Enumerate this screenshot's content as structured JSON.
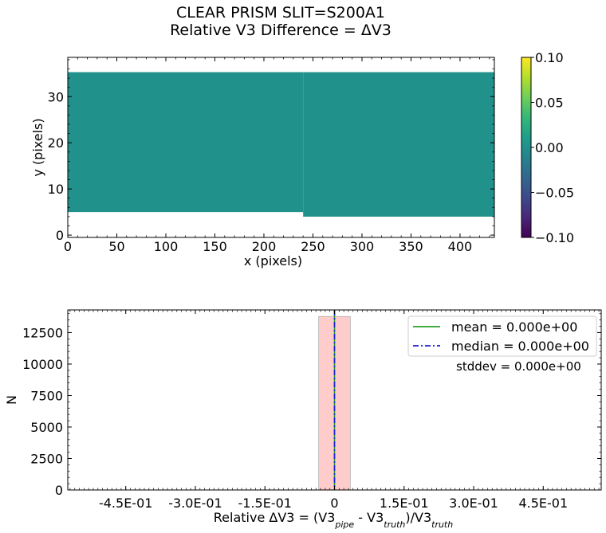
{
  "title_line1": "CLEAR   PRISM   SLIT=S200A1",
  "title_line2": "Relative V3 Difference = ΔV3",
  "chart_data": [
    {
      "type": "heatmap",
      "xlabel": "x (pixels)",
      "ylabel": "y (pixels)",
      "xlim": [
        0,
        435
      ],
      "ylim": [
        -0.5,
        38.5
      ],
      "xticks": [
        0,
        50,
        100,
        150,
        200,
        250,
        300,
        350,
        400
      ],
      "yticks": [
        0,
        10,
        20,
        30
      ],
      "value": 0.0,
      "fill_color": "#21918c",
      "regions": [
        {
          "x0": 0,
          "x1": 240,
          "y0": 5.0,
          "y1": 35.3
        },
        {
          "x0": 240,
          "x1": 435,
          "y0": 4.0,
          "y1": 35.3
        }
      ],
      "colorbar": {
        "min": -0.1,
        "max": 0.1,
        "ticks": [
          "0.10",
          "0.05",
          "0.00",
          "−0.05",
          "−0.10"
        ],
        "tick_values": [
          0.1,
          0.05,
          0.0,
          -0.05,
          -0.1
        ]
      }
    },
    {
      "type": "bar",
      "xlabel_parts": [
        "Relative ΔV3 = (V3",
        "pipe",
        " - V3",
        "truth",
        ")/V3",
        "truth"
      ],
      "ylabel": "N",
      "xlim": [
        -0.575,
        0.575
      ],
      "ylim": [
        0,
        14300
      ],
      "xticks": [
        -0.45,
        -0.3,
        -0.15,
        0,
        0.15,
        0.3,
        0.45
      ],
      "xtick_labels": [
        "-4.5E-01",
        "-3.0E-01",
        "-1.5E-01",
        "0",
        "1.5E-01",
        "3.0E-01",
        "4.5E-01"
      ],
      "yticks": [
        0,
        2500,
        5000,
        7500,
        10000,
        12500
      ],
      "bins": [
        {
          "x0": -0.034,
          "x1": 0.034,
          "count": 13780
        }
      ],
      "bar_color": "#ffcccc",
      "mean": 0.0,
      "median": 0.0,
      "mean_color": "#2ca02c",
      "median_color": "#1f1fd6",
      "legend": [
        "mean = 0.000e+00",
        "median = 0.000e+00"
      ],
      "stddev_text": "stddev = 0.000e+00"
    }
  ]
}
